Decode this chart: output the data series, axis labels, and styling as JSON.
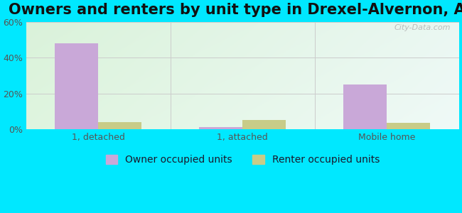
{
  "title": "Owners and renters by unit type in Drexel-Alvernon, AZ",
  "categories": [
    "1, detached",
    "1, attached",
    "Mobile home"
  ],
  "owner_values": [
    48,
    1,
    25
  ],
  "renter_values": [
    4,
    5,
    3.5
  ],
  "owner_color": "#c9a8d8",
  "renter_color": "#c8cc88",
  "ylim": [
    0,
    60
  ],
  "yticks": [
    0,
    20,
    40,
    60
  ],
  "ytick_labels": [
    "0%",
    "20%",
    "40%",
    "60%"
  ],
  "background_outer": "#00e8ff",
  "grid_color": "#cccccc",
  "title_fontsize": 15,
  "axis_fontsize": 9,
  "legend_fontsize": 10,
  "bar_width": 0.3,
  "watermark": "City-Data.com"
}
